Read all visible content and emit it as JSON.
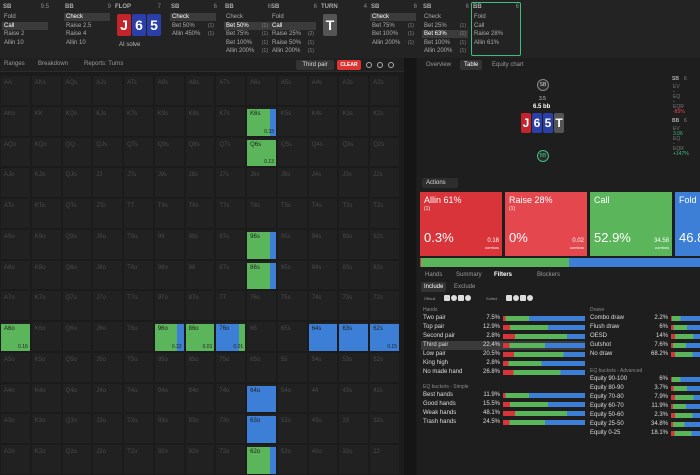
{
  "top_bar": {
    "columns": [
      {
        "label": "SB",
        "stack": "9.5",
        "options": [
          {
            "label": "Fold"
          },
          {
            "label": "Call",
            "selected": true
          },
          {
            "label": "Raise 2"
          },
          {
            "label": "Allin 10"
          }
        ]
      },
      {
        "label": "BB",
        "stack": "9",
        "options": [
          {
            "label": "Check",
            "selected": true
          },
          {
            "label": "Raise 2.5"
          },
          {
            "label": "Raise 4"
          },
          {
            "label": "Allin 10"
          }
        ]
      },
      {
        "label": "FLOP",
        "stack": "7",
        "cards": [
          {
            "rank": "J",
            "color": "#c3232b"
          },
          {
            "rank": "6",
            "color": "#2b3fa8"
          },
          {
            "rank": "5",
            "color": "#2b3fa8"
          }
        ],
        "note": "AI solve"
      },
      {
        "label": "SB",
        "stack": "6",
        "options": [
          {
            "label": "Check",
            "selected": true
          },
          {
            "label": "Bet 50%",
            "count": "(1)"
          },
          {
            "label": "Allin 450%",
            "count": "(1)"
          }
        ]
      },
      {
        "label": "BB",
        "stack": "6",
        "options": [
          {
            "label": "Check"
          },
          {
            "label": "Bet 50%",
            "count": "(1)",
            "selected": true
          },
          {
            "label": "Bet 75%",
            "count": "(1)"
          },
          {
            "label": "Bet 100%",
            "count": "(1)"
          },
          {
            "label": "Allin 200%",
            "count": "(1)"
          }
        ]
      },
      {
        "label": "SB",
        "stack": "6",
        "options": [
          {
            "label": "Fold"
          },
          {
            "label": "Call",
            "selected": true
          },
          {
            "label": "Raise 25%",
            "count": "(2)"
          },
          {
            "label": "Raise 50%",
            "count": "(1)"
          },
          {
            "label": "Allin 200%",
            "count": "(1)"
          }
        ]
      },
      {
        "label": "TURN",
        "stack": "4",
        "cards": [
          {
            "rank": "T",
            "color": "#555555"
          }
        ]
      },
      {
        "label": "SB",
        "stack": "6",
        "options": [
          {
            "label": "Check",
            "selected": true
          },
          {
            "label": "Bet 75%",
            "count": "(1)"
          },
          {
            "label": "Bet 100%",
            "count": "(1)"
          },
          {
            "label": "Allin 200%",
            "count": "(1)"
          }
        ]
      },
      {
        "label": "SB",
        "stack": "6",
        "options": [
          {
            "label": "Check"
          },
          {
            "label": "Bet 25%",
            "count": "(1)"
          },
          {
            "label": "Bet 63%",
            "count": "(1)",
            "selected": true
          },
          {
            "label": "Bet 100%",
            "count": "(1)"
          },
          {
            "label": "Allin 200%",
            "count": "(1)"
          }
        ]
      },
      {
        "label": "BB",
        "stack": "6",
        "boxed": true,
        "options": [
          {
            "label": "Fold"
          },
          {
            "label": "Call"
          },
          {
            "label": "Raise 28%"
          },
          {
            "label": "Allin 61%"
          }
        ]
      }
    ]
  },
  "toolbar": {
    "tabs": [
      "Ranges",
      "Breakdown",
      "Reports: Turns"
    ],
    "filter_chip": "Third pair",
    "clear": "CLEAR"
  },
  "side_tabs": [
    "Overview",
    "Table",
    "Equity chart"
  ],
  "range_grid": {
    "rows": [
      [
        "AA",
        "AKs",
        "AQs",
        "AJs",
        "ATs",
        "A9s",
        "A8s",
        "A7s",
        "A6s",
        "A5s",
        "A4s",
        "A3s",
        "A2s"
      ],
      [
        "AKo",
        "KK",
        "KQs",
        "KJs",
        "KTs",
        "K9s",
        "K8s",
        "K7s",
        {
          "label": "K6s",
          "combos": "0.33",
          "colors": [
            "#5bb55b",
            "#3d7fd6"
          ]
        },
        "K5s",
        "K4s",
        "K3s",
        "K2s"
      ],
      [
        "AQo",
        "KQo",
        "QQ",
        "QJs",
        "QTs",
        "Q9s",
        "Q8s",
        "Q7s",
        {
          "label": "Q6s",
          "combos": "0.13",
          "colors": [
            "#5bb55b"
          ]
        },
        "Q5s",
        "Q4s",
        "Q3s",
        "Q2s"
      ],
      [
        "AJo",
        "KJo",
        "QJo",
        "JJ",
        "JTs",
        "J9s",
        "J8s",
        "J7s",
        "J6s",
        "J5s",
        "J4s",
        "J3s",
        "J2s"
      ],
      [
        "ATo",
        "KTo",
        "QTo",
        "JTo",
        "TT",
        "T9s",
        "T8s",
        "T7s",
        "T6s",
        "T5s",
        "T4s",
        "T3s",
        "T2s"
      ],
      [
        "A9o",
        "K9o",
        "Q9o",
        "J9o",
        "T9o",
        "99",
        "98s",
        "97s",
        {
          "label": "96s",
          "colors": [
            "#5bb55b",
            "#3d7fd6"
          ]
        },
        "95s",
        "94s",
        "93s",
        "92s"
      ],
      [
        "A8o",
        "K8o",
        "Q8o",
        "J8o",
        "T8o",
        "98o",
        "88",
        "87s",
        {
          "label": "86s",
          "colors": [
            "#5bb55b",
            "#3d7fd6"
          ]
        },
        "85s",
        "84s",
        "83s",
        "82s"
      ],
      [
        "A7o",
        "K7o",
        "Q7o",
        "J7o",
        "T7o",
        "97o",
        "87o",
        "77",
        "76s",
        "75s",
        "74s",
        "73s",
        "72s"
      ],
      [
        {
          "label": "A6o",
          "combos": "0.16",
          "colors": [
            "#5bb55b"
          ]
        },
        "K6o",
        "Q6o",
        "J6o",
        "T6o",
        {
          "label": "96o",
          "combos": "0.32",
          "colors": [
            "#5bb55b",
            "#3d7fd6"
          ]
        },
        {
          "label": "86o",
          "combos": "0.01",
          "colors": [
            "#5bb55b"
          ]
        },
        {
          "label": "76o",
          "combos": "0.01",
          "colors": [
            "#3d7fd6",
            "#5bb55b"
          ]
        },
        "66",
        "65s",
        {
          "label": "64s",
          "colors": [
            "#3d7fd6"
          ]
        },
        {
          "label": "63s",
          "colors": [
            "#3d7fd6"
          ]
        },
        {
          "label": "62s",
          "combos": "0.15",
          "colors": [
            "#3d7fd6"
          ]
        }
      ],
      [
        "A5o",
        "K5o",
        "Q5o",
        "J5o",
        "T5o",
        "95o",
        "85o",
        "75o",
        "65o",
        "55",
        "54s",
        "53s",
        "52s"
      ],
      [
        "A4o",
        "K4o",
        "Q4o",
        "J4o",
        "T4o",
        "94o",
        "84o",
        "74o",
        {
          "label": "64o",
          "colors": [
            "#3d7fd6"
          ]
        },
        "54o",
        "44",
        "43s",
        "42s"
      ],
      [
        "A3o",
        "K3o",
        "Q3o",
        "J3o",
        "T3o",
        "93o",
        "83o",
        "73o",
        {
          "label": "63o",
          "colors": [
            "#3d7fd6"
          ]
        },
        "53o",
        "43o",
        "33",
        "32s"
      ],
      [
        "A2o",
        "K2o",
        "Q2o",
        "J2o",
        "T2o",
        "92o",
        "82o",
        "72o",
        {
          "label": "62o",
          "colors": [
            "#5bb55b",
            "#3d7fd6"
          ]
        },
        "52o",
        "42o",
        "32o",
        "22"
      ]
    ]
  },
  "table_view": {
    "top_seat": "SB",
    "bet": "3.5",
    "pot": "6.5 bb",
    "bottom_seat": "BB",
    "board": [
      {
        "rank": "J",
        "color": "#c3232b"
      },
      {
        "rank": "6",
        "color": "#2b3fa8"
      },
      {
        "rank": "5",
        "color": "#2b3fa8"
      },
      {
        "rank": "T",
        "color": "#555555"
      }
    ],
    "stats": [
      {
        "player": "SB",
        "stack": "6",
        "items": [
          {
            "k": "EV",
            "v": "-"
          },
          {
            "k": "EQ",
            "v": "-"
          },
          {
            "k": "EQR",
            "v": "-85%"
          }
        ]
      },
      {
        "player": "BB",
        "stack": "6",
        "items": [
          {
            "k": "EV",
            "v": "3.06"
          },
          {
            "k": "EQ",
            "v": "-"
          },
          {
            "k": "EQR",
            "v": "+147%"
          }
        ]
      }
    ]
  },
  "actions": {
    "menu": "Actions",
    "options": [
      {
        "label": "Allin 61%",
        "count": "(1)",
        "freq": 0.3,
        "freq_label": "0.3%",
        "combos": "0.18",
        "combos_unit": "combos",
        "color": "#d9343a"
      },
      {
        "label": "Raise 28%",
        "count": "(1)",
        "freq": 0,
        "freq_label": "0%",
        "combos": "0.02",
        "combos_unit": "combos",
        "color": "#e5474f"
      },
      {
        "label": "Call",
        "freq": 52.9,
        "freq_label": "52.9%",
        "combos": "34.58",
        "combos_unit": "combos",
        "color": "#5bb55b"
      },
      {
        "label": "Fold",
        "freq": 46.8,
        "freq_label": "46.8",
        "color": "#3d7fd6"
      }
    ]
  },
  "filters": {
    "tabs": [
      "Hands",
      "Summary",
      "Filters",
      "Blockers"
    ],
    "modes": [
      "Include",
      "Exclude"
    ],
    "suits": [
      "Offsuit",
      "Suited"
    ],
    "sections": [
      {
        "title": "Hands",
        "rows": [
          {
            "label": "Two pair",
            "pct": "7.5%"
          },
          {
            "label": "Top pair",
            "pct": "12.9%"
          },
          {
            "label": "Second pair",
            "pct": "2.8%"
          },
          {
            "label": "Third pair",
            "pct": "22.4%",
            "selected": true
          },
          {
            "label": "Low pair",
            "pct": "20.5%"
          },
          {
            "label": "King high",
            "pct": "2.8%"
          },
          {
            "label": "No made hand",
            "pct": "26.8%"
          }
        ]
      },
      {
        "title": "EQ buckets - Simple",
        "rows": [
          {
            "label": "Best hands",
            "pct": "11.9%"
          },
          {
            "label": "Good hands",
            "pct": "15.5%"
          },
          {
            "label": "Weak hands",
            "pct": "48.1%"
          },
          {
            "label": "Trash hands",
            "pct": "24.5%"
          }
        ]
      },
      {
        "title": "Draws",
        "rows": [
          {
            "label": "Combo draw",
            "pct": "2.2%"
          },
          {
            "label": "Flush draw",
            "pct": "6%"
          },
          {
            "label": "OESD",
            "pct": "14%"
          },
          {
            "label": "Gutshot",
            "pct": "7.6%"
          },
          {
            "label": "No draw",
            "pct": "68.2%"
          }
        ]
      },
      {
        "title": "EQ buckets - Advanced",
        "rows": [
          {
            "label": "Equity 90-100",
            "pct": "6%"
          },
          {
            "label": "Equity 80-90",
            "pct": "3.7%"
          },
          {
            "label": "Equity 70-80",
            "pct": "7.9%"
          },
          {
            "label": "Equity 60-70",
            "pct": "11.9%"
          },
          {
            "label": "Equity 50-60",
            "pct": "2.3%"
          },
          {
            "label": "Equity 25-50",
            "pct": "34.8%"
          },
          {
            "label": "Equity 0-25",
            "pct": "18.1%"
          }
        ]
      }
    ]
  }
}
